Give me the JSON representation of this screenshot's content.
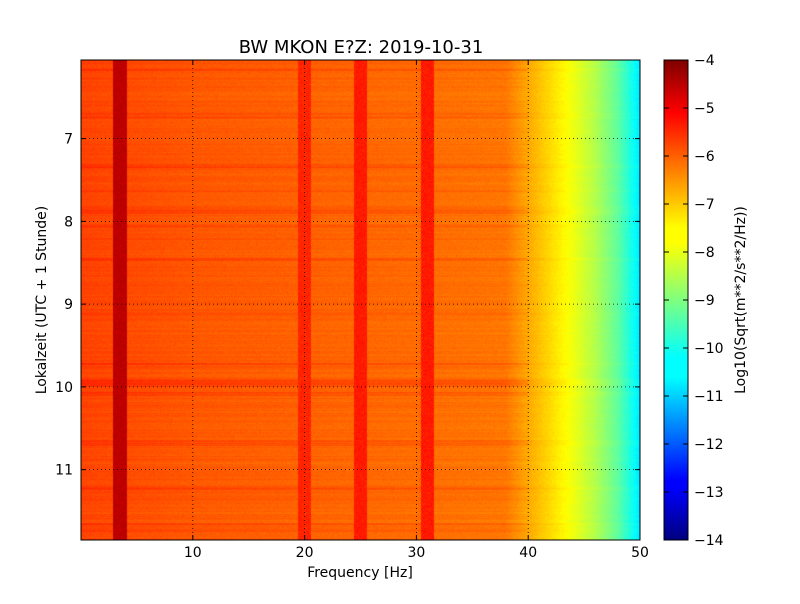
{
  "chart_data": {
    "type": "heatmap",
    "title": "BW MKON E?Z: 2019-10-31",
    "xlabel": "Frequency [Hz]",
    "ylabel": "Lokalzeit (UTC + 1 Stunde)",
    "xlim": [
      0,
      50
    ],
    "ylim": [
      11.85,
      6.05
    ],
    "x_ticks": [
      10,
      20,
      30,
      40,
      50
    ],
    "x_tick_labels": [
      "10",
      "20",
      "30",
      "40",
      "50"
    ],
    "y_ticks": [
      7,
      8,
      9,
      10,
      11
    ],
    "y_tick_labels": [
      "7",
      "8",
      "9",
      "10",
      "11"
    ],
    "y_inverted": true,
    "grid": true,
    "grid_style": "dotted",
    "colorbar": {
      "label": "Log10(Sqrt(m**2/s**2/Hz))",
      "range": [
        -14,
        -4
      ],
      "ticks": [
        -4,
        -5,
        -6,
        -7,
        -8,
        -9,
        -10,
        -11,
        -12,
        -13,
        -14
      ],
      "tick_labels": [
        "−4",
        "−5",
        "−6",
        "−7",
        "−8",
        "−9",
        "−10",
        "−11",
        "−12",
        "−13",
        "−14"
      ],
      "colormap": "jet"
    },
    "spectral_profile": {
      "frequency_hz": [
        0,
        5,
        10,
        20,
        30,
        38,
        40,
        42,
        44,
        46,
        48,
        50
      ],
      "level": [
        -5.9,
        -6.0,
        -6.1,
        -6.2,
        -6.3,
        -6.4,
        -6.9,
        -7.4,
        -7.9,
        -8.5,
        -9.3,
        -10.5
      ]
    },
    "features": [
      {
        "kind": "vertical_line",
        "frequency_hz": 20,
        "level": -5.6
      },
      {
        "kind": "vertical_line",
        "frequency_hz": 25,
        "level": -5.5
      },
      {
        "kind": "vertical_line",
        "frequency_hz": 31,
        "level": -5.5
      },
      {
        "kind": "vertical_line",
        "frequency_hz": 3.5,
        "level": -4.6
      }
    ]
  }
}
